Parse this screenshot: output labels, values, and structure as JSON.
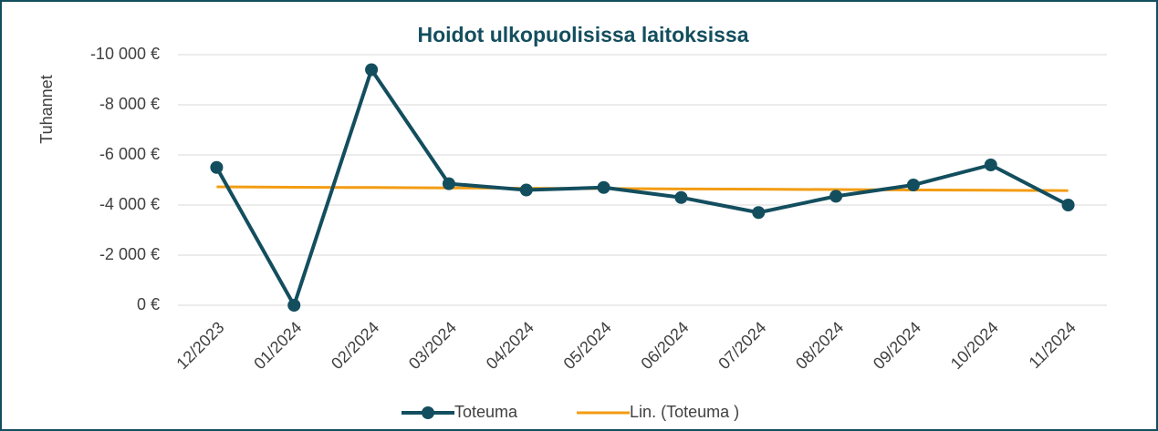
{
  "chart_data": {
    "type": "line",
    "title": "Hoidot ulkopuolisissa laitoksissa",
    "y_label": "Tuhannet",
    "categories": [
      "12/2023",
      "01/2024",
      "02/2024",
      "03/2024",
      "04/2024",
      "05/2024",
      "06/2024",
      "07/2024",
      "08/2024",
      "09/2024",
      "10/2024",
      "11/2024"
    ],
    "series": [
      {
        "name": "Toteuma",
        "color": "#134e5e",
        "marker": true,
        "values": [
          -5500,
          0,
          -9400,
          -4850,
          -4600,
          -4700,
          -4300,
          -3700,
          -4350,
          -4800,
          -5600,
          -4000
        ]
      },
      {
        "name": "Lin. (Toteuma )",
        "color": "#f39c12",
        "marker": false,
        "values": [
          -4725,
          -4711,
          -4698,
          -4684,
          -4670,
          -4657,
          -4643,
          -4630,
          -4616,
          -4602,
          -4589,
          -4575
        ]
      }
    ],
    "ylim": [
      0,
      -10000
    ],
    "yticks": [
      {
        "value": 0,
        "label": "0 €"
      },
      {
        "value": -2000,
        "label": "-2 000 €"
      },
      {
        "value": -4000,
        "label": "-4 000 €"
      },
      {
        "value": -6000,
        "label": "-6 000 €"
      },
      {
        "value": -8000,
        "label": "-8 000 €"
      },
      {
        "value": -10000,
        "label": "-10 000 €"
      }
    ],
    "grid": true
  }
}
